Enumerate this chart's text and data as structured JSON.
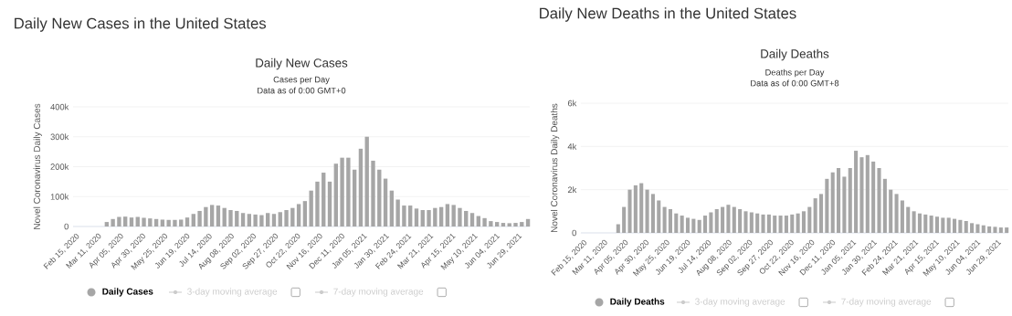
{
  "chart_data": [
    {
      "type": "bar",
      "title": "Daily New Cases",
      "subtitle": "Cases per Day",
      "ylabel": "Novel Coronavirus Daily Cases",
      "annotations": [
        "Daily New Cases in the United States",
        "Data as of 0:00 GMT+0",
        "3-day moving average",
        "7-day moving average"
      ],
      "x": [
        "2020-02-15",
        "2020-02-22",
        "2020-02-29",
        "2020-03-07",
        "2020-03-14",
        "2020-03-21",
        "2020-03-28",
        "2020-04-04",
        "2020-04-11",
        "2020-04-18",
        "2020-04-25",
        "2020-05-02",
        "2020-05-09",
        "2020-05-16",
        "2020-05-23",
        "2020-05-30",
        "2020-06-06",
        "2020-06-13",
        "2020-06-20",
        "2020-06-27",
        "2020-07-04",
        "2020-07-11",
        "2020-07-18",
        "2020-07-25",
        "2020-08-01",
        "2020-08-08",
        "2020-08-15",
        "2020-08-22",
        "2020-08-29",
        "2020-09-05",
        "2020-09-12",
        "2020-09-19",
        "2020-09-26",
        "2020-10-03",
        "2020-10-10",
        "2020-10-17",
        "2020-10-24",
        "2020-10-31",
        "2020-11-07",
        "2020-11-14",
        "2020-11-21",
        "2020-11-28",
        "2020-12-05",
        "2020-12-12",
        "2020-12-19",
        "2020-12-26",
        "2021-01-02",
        "2021-01-09",
        "2021-01-16",
        "2021-01-23",
        "2021-01-30",
        "2021-02-06",
        "2021-02-13",
        "2021-02-20",
        "2021-02-27",
        "2021-03-06",
        "2021-03-13",
        "2021-03-20",
        "2021-03-27",
        "2021-04-03",
        "2021-04-10",
        "2021-04-17",
        "2021-04-24",
        "2021-05-01",
        "2021-05-08",
        "2021-05-15",
        "2021-05-22",
        "2021-05-29",
        "2021-06-05",
        "2021-06-12",
        "2021-06-19",
        "2021-06-26",
        "2021-07-03",
        "2021-07-10"
      ],
      "series": [
        {
          "name": "Daily Cases",
          "color": "#a6a6a6",
          "values": [
            0,
            0,
            0,
            0,
            0,
            15000,
            25000,
            32000,
            33000,
            30000,
            32000,
            29000,
            27000,
            25000,
            23000,
            22000,
            22000,
            23000,
            30000,
            42000,
            52000,
            65000,
            72000,
            70000,
            62000,
            55000,
            52000,
            45000,
            42000,
            40000,
            38000,
            45000,
            42000,
            48000,
            55000,
            62000,
            75000,
            85000,
            120000,
            150000,
            180000,
            150000,
            210000,
            230000,
            230000,
            190000,
            260000,
            300000,
            220000,
            190000,
            160000,
            120000,
            90000,
            70000,
            70000,
            60000,
            55000,
            55000,
            62000,
            65000,
            75000,
            72000,
            62000,
            52000,
            45000,
            35000,
            28000,
            18000,
            15000,
            12000,
            11000,
            12000,
            15000,
            25000
          ]
        }
      ],
      "xlim": [
        "2020-02-12",
        "2021-07-12"
      ],
      "xticks": [
        {
          "value": "2020-02-15",
          "label": "Feb 15, 2020"
        },
        {
          "value": "2020-03-11",
          "label": "Mar 11, 2020"
        },
        {
          "value": "2020-04-05",
          "label": "Apr 05, 2020"
        },
        {
          "value": "2020-04-30",
          "label": "Apr 30, 2020"
        },
        {
          "value": "2020-05-25",
          "label": "May 25, 2020"
        },
        {
          "value": "2020-06-19",
          "label": "Jun 19, 2020"
        },
        {
          "value": "2020-07-14",
          "label": "Jul 14, 2020"
        },
        {
          "value": "2020-08-08",
          "label": "Aug 08, 2020"
        },
        {
          "value": "2020-09-02",
          "label": "Sep 02, 2020"
        },
        {
          "value": "2020-09-27",
          "label": "Sep 27, 2020"
        },
        {
          "value": "2020-10-22",
          "label": "Oct 22, 2020"
        },
        {
          "value": "2020-11-16",
          "label": "Nov 16, 2020"
        },
        {
          "value": "2020-12-11",
          "label": "Dec 11, 2020"
        },
        {
          "value": "2021-01-05",
          "label": "Jan 05, 2021"
        },
        {
          "value": "2021-01-30",
          "label": "Jan 30, 2021"
        },
        {
          "value": "2021-02-24",
          "label": "Feb 24, 2021"
        },
        {
          "value": "2021-03-21",
          "label": "Mar 21, 2021"
        },
        {
          "value": "2021-04-15",
          "label": "Apr 15, 2021"
        },
        {
          "value": "2021-05-10",
          "label": "May 10, 2021"
        },
        {
          "value": "2021-06-04",
          "label": "Jun 04, 2021"
        },
        {
          "value": "2021-06-29",
          "label": "Jun 29, 2021"
        }
      ],
      "ylim": [
        0,
        400000
      ],
      "yticks": [
        0,
        {
          "value": 100000,
          "label": "100k"
        },
        {
          "value": 200000,
          "label": "200k"
        },
        {
          "value": 300000,
          "label": "300k"
        },
        {
          "value": 400000,
          "label": "400k"
        }
      ],
      "grid": "y",
      "legend": "bottom"
    },
    {
      "type": "bar",
      "title": "Daily Deaths",
      "subtitle": "Deaths per Day",
      "ylabel": "Novel Coronavirus Daily Deaths",
      "annotations": [
        "Daily New Deaths in the United States",
        "Data as of 0:00 GMT+8",
        "3-day moving average",
        "7-day moving average"
      ],
      "x": [
        "2020-02-15",
        "2020-02-22",
        "2020-02-29",
        "2020-03-07",
        "2020-03-14",
        "2020-03-21",
        "2020-03-28",
        "2020-04-04",
        "2020-04-11",
        "2020-04-18",
        "2020-04-25",
        "2020-05-02",
        "2020-05-09",
        "2020-05-16",
        "2020-05-23",
        "2020-05-30",
        "2020-06-06",
        "2020-06-13",
        "2020-06-20",
        "2020-06-27",
        "2020-07-04",
        "2020-07-11",
        "2020-07-18",
        "2020-07-25",
        "2020-08-01",
        "2020-08-08",
        "2020-08-15",
        "2020-08-22",
        "2020-08-29",
        "2020-09-05",
        "2020-09-12",
        "2020-09-19",
        "2020-09-26",
        "2020-10-03",
        "2020-10-10",
        "2020-10-17",
        "2020-10-24",
        "2020-10-31",
        "2020-11-07",
        "2020-11-14",
        "2020-11-21",
        "2020-11-28",
        "2020-12-05",
        "2020-12-12",
        "2020-12-19",
        "2020-12-26",
        "2021-01-02",
        "2021-01-09",
        "2021-01-16",
        "2021-01-23",
        "2021-01-30",
        "2021-02-06",
        "2021-02-13",
        "2021-02-20",
        "2021-02-27",
        "2021-03-06",
        "2021-03-13",
        "2021-03-20",
        "2021-03-27",
        "2021-04-03",
        "2021-04-10",
        "2021-04-17",
        "2021-04-24",
        "2021-05-01",
        "2021-05-08",
        "2021-05-15",
        "2021-05-22",
        "2021-05-29",
        "2021-06-05",
        "2021-06-12",
        "2021-06-19",
        "2021-06-26",
        "2021-07-03",
        "2021-07-10"
      ],
      "series": [
        {
          "name": "Daily Deaths",
          "color": "#a6a6a6",
          "values": [
            0,
            0,
            0,
            0,
            0,
            0,
            400,
            1200,
            2000,
            2200,
            2300,
            2000,
            1800,
            1500,
            1200,
            1100,
            900,
            800,
            700,
            650,
            600,
            800,
            950,
            1100,
            1200,
            1300,
            1200,
            1100,
            1000,
            950,
            900,
            850,
            850,
            800,
            800,
            800,
            850,
            900,
            1000,
            1200,
            1600,
            1800,
            2500,
            2800,
            3000,
            2600,
            3000,
            3800,
            3500,
            3600,
            3300,
            3000,
            2500,
            2000,
            1800,
            1500,
            1200,
            1000,
            900,
            850,
            800,
            750,
            700,
            700,
            650,
            600,
            550,
            450,
            400,
            350,
            300,
            280,
            250,
            250
          ]
        }
      ],
      "xlim": [
        "2020-02-12",
        "2021-07-12"
      ],
      "xticks": [
        {
          "value": "2020-02-15",
          "label": "Feb 15, 2020"
        },
        {
          "value": "2020-03-11",
          "label": "Mar 11, 2020"
        },
        {
          "value": "2020-04-05",
          "label": "Apr 05, 2020"
        },
        {
          "value": "2020-04-30",
          "label": "Apr 30, 2020"
        },
        {
          "value": "2020-05-25",
          "label": "May 25, 2020"
        },
        {
          "value": "2020-06-19",
          "label": "Jun 19, 2020"
        },
        {
          "value": "2020-07-14",
          "label": "Jul 14, 2020"
        },
        {
          "value": "2020-08-08",
          "label": "Aug 08, 2020"
        },
        {
          "value": "2020-09-02",
          "label": "Sep 02, 2020"
        },
        {
          "value": "2020-09-27",
          "label": "Sep 27, 2020"
        },
        {
          "value": "2020-10-22",
          "label": "Oct 22, 2020"
        },
        {
          "value": "2020-11-16",
          "label": "Nov 16, 2020"
        },
        {
          "value": "2020-12-11",
          "label": "Dec 11, 2020"
        },
        {
          "value": "2021-01-05",
          "label": "Jan 05, 2021"
        },
        {
          "value": "2021-01-30",
          "label": "Jan 30, 2021"
        },
        {
          "value": "2021-02-24",
          "label": "Feb 24, 2021"
        },
        {
          "value": "2021-03-21",
          "label": "Mar 21, 2021"
        },
        {
          "value": "2021-04-15",
          "label": "Apr 15, 2021"
        },
        {
          "value": "2021-05-10",
          "label": "May 10, 2021"
        },
        {
          "value": "2021-06-04",
          "label": "Jun 04, 2021"
        },
        {
          "value": "2021-06-29",
          "label": "Jun 29, 2021"
        }
      ],
      "ylim": [
        0,
        6000
      ],
      "yticks": [
        0,
        {
          "value": 2000,
          "label": "2k"
        },
        {
          "value": 4000,
          "label": "4k"
        },
        {
          "value": 6000,
          "label": "6k"
        }
      ],
      "grid": "y",
      "legend": "bottom"
    }
  ]
}
